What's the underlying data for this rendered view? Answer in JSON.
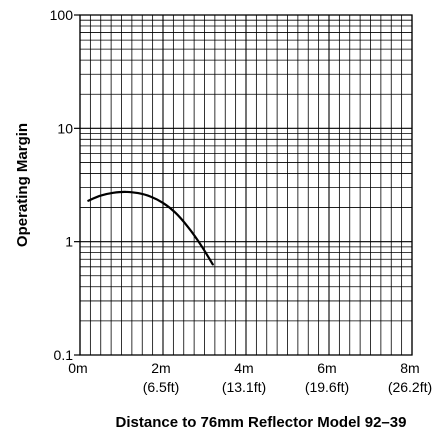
{
  "chart_data": {
    "type": "line",
    "title": "",
    "xlabel": "Distance to 76mm Reflector Model 92–39",
    "ylabel": "Operating Margin",
    "xlim": [
      0,
      8
    ],
    "ylim": [
      0.1,
      100
    ],
    "y_scale": "log",
    "grid": true,
    "x_ticks": [
      {
        "value": 0,
        "label": "0m",
        "sublabel": ""
      },
      {
        "value": 2,
        "label": "2m",
        "sublabel": "(6.5ft)"
      },
      {
        "value": 4,
        "label": "4m",
        "sublabel": "(13.1ft)"
      },
      {
        "value": 6,
        "label": "6m",
        "sublabel": "(19.6ft)"
      },
      {
        "value": 8,
        "label": "8m",
        "sublabel": "(26.2ft)"
      }
    ],
    "y_ticks": [
      {
        "value": 0.1,
        "label": "0.1"
      },
      {
        "value": 1,
        "label": "1"
      },
      {
        "value": 10,
        "label": "10"
      },
      {
        "value": 100,
        "label": "100"
      }
    ],
    "series": [
      {
        "x": [
          0.2,
          0.5,
          0.8,
          1.1,
          1.4,
          1.7,
          2.0,
          2.3,
          2.6,
          2.9,
          3.2
        ],
        "y": [
          2.3,
          2.55,
          2.7,
          2.75,
          2.68,
          2.5,
          2.2,
          1.8,
          1.35,
          0.95,
          0.63
        ]
      }
    ]
  }
}
